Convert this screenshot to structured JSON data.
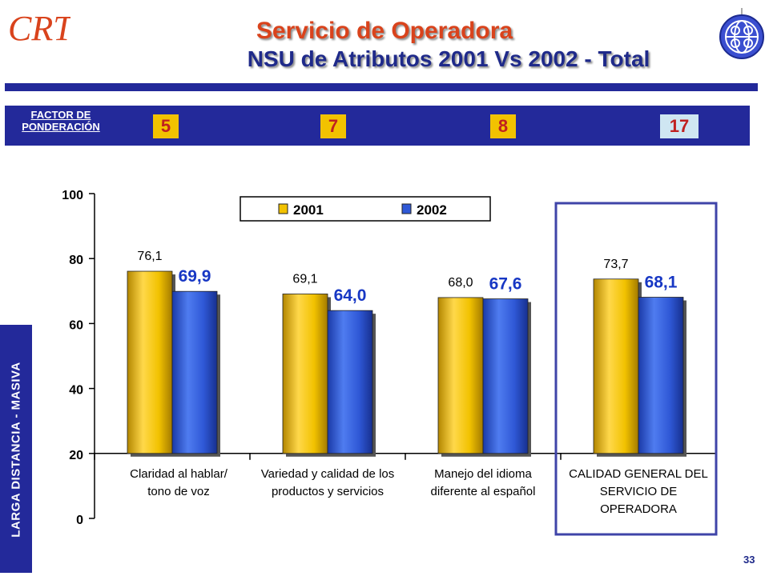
{
  "header": {
    "logo_text": "CRT",
    "title": "Servicio de Operadora",
    "subtitle": "NSU de Atributos 2001 Vs 2002 - Total"
  },
  "factor": {
    "label_line1": "FACTOR DE",
    "label_line2": "PONDERACIÓN",
    "values": [
      "5",
      "7",
      "8",
      "17"
    ],
    "box_colors": [
      "#f2c200",
      "#f2c200",
      "#f2c200",
      "#cfe6f2"
    ]
  },
  "sidebar": {
    "label": "LARGA DISTANCIA - MASIVA"
  },
  "page_number": "33",
  "colors": {
    "brand_blue": "#23299a",
    "title_red": "#d9431c",
    "series_2001": "#f2c200",
    "series_2002": "#2f58d6",
    "label_2002": "#1737c4"
  },
  "chart_data": {
    "type": "bar",
    "categories": [
      [
        "Claridad al hablar/",
        "tono de voz"
      ],
      [
        "Variedad y calidad de los",
        "productos y servicios"
      ],
      [
        "Manejo del idioma",
        "diferente al español"
      ],
      [
        "CALIDAD GENERAL DEL",
        "SERVICIO DE",
        "OPERADORA"
      ]
    ],
    "series": [
      {
        "name": "2001",
        "values": [
          76.1,
          69.1,
          68.0,
          73.7
        ],
        "labels": [
          "76,1",
          "69,1",
          "68,0",
          "73,7"
        ]
      },
      {
        "name": "2002",
        "values": [
          69.9,
          64.0,
          67.6,
          68.1
        ],
        "labels": [
          "69,9",
          "64,0",
          "67,6",
          "68,1"
        ]
      }
    ],
    "ylim": [
      0,
      100
    ],
    "yticks": [
      "0",
      "20",
      "40",
      "60",
      "80",
      "100"
    ],
    "legend_position": "top-center",
    "highlighted_category": "CALIDAD GENERAL DEL SERVICIO DE OPERADORA"
  }
}
